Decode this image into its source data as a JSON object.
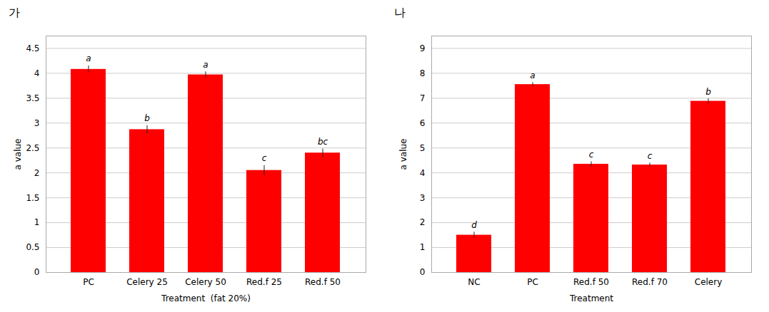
{
  "chart_data": [
    {
      "type": "bar",
      "title": "가",
      "categories": [
        "PC",
        "Celery 25",
        "Celery 50",
        "Red.f 25",
        "Red.f 50"
      ],
      "values": [
        4.08,
        2.87,
        3.97,
        2.05,
        2.4
      ],
      "errors": [
        0.07,
        0.08,
        0.06,
        0.1,
        0.08
      ],
      "annotations": [
        "a",
        "b",
        "a",
        "c",
        "bc"
      ],
      "xlabel": "Treatment  (fat 20%)",
      "ylabel": "a value",
      "ylim": [
        0,
        4.75
      ],
      "yticks": [
        0,
        0.5,
        1,
        1.5,
        2,
        2.5,
        3,
        3.5,
        4,
        4.5
      ],
      "color": "#FF0000",
      "grid": true
    },
    {
      "type": "bar",
      "title": "나",
      "categories": [
        "NC",
        "PC",
        "Red.f 50",
        "Red.f 70",
        "Celery"
      ],
      "values": [
        1.5,
        7.55,
        4.35,
        4.32,
        6.88
      ],
      "errors": [
        0.12,
        0.08,
        0.1,
        0.08,
        0.1
      ],
      "annotations": [
        "d",
        "a",
        "c",
        "c",
        "b"
      ],
      "xlabel": "Treatment",
      "ylabel": "a value",
      "ylim": [
        0,
        9.5
      ],
      "yticks": [
        0,
        1,
        2,
        3,
        4,
        5,
        6,
        7,
        8,
        9
      ],
      "color": "#FF0000",
      "grid": true
    }
  ]
}
